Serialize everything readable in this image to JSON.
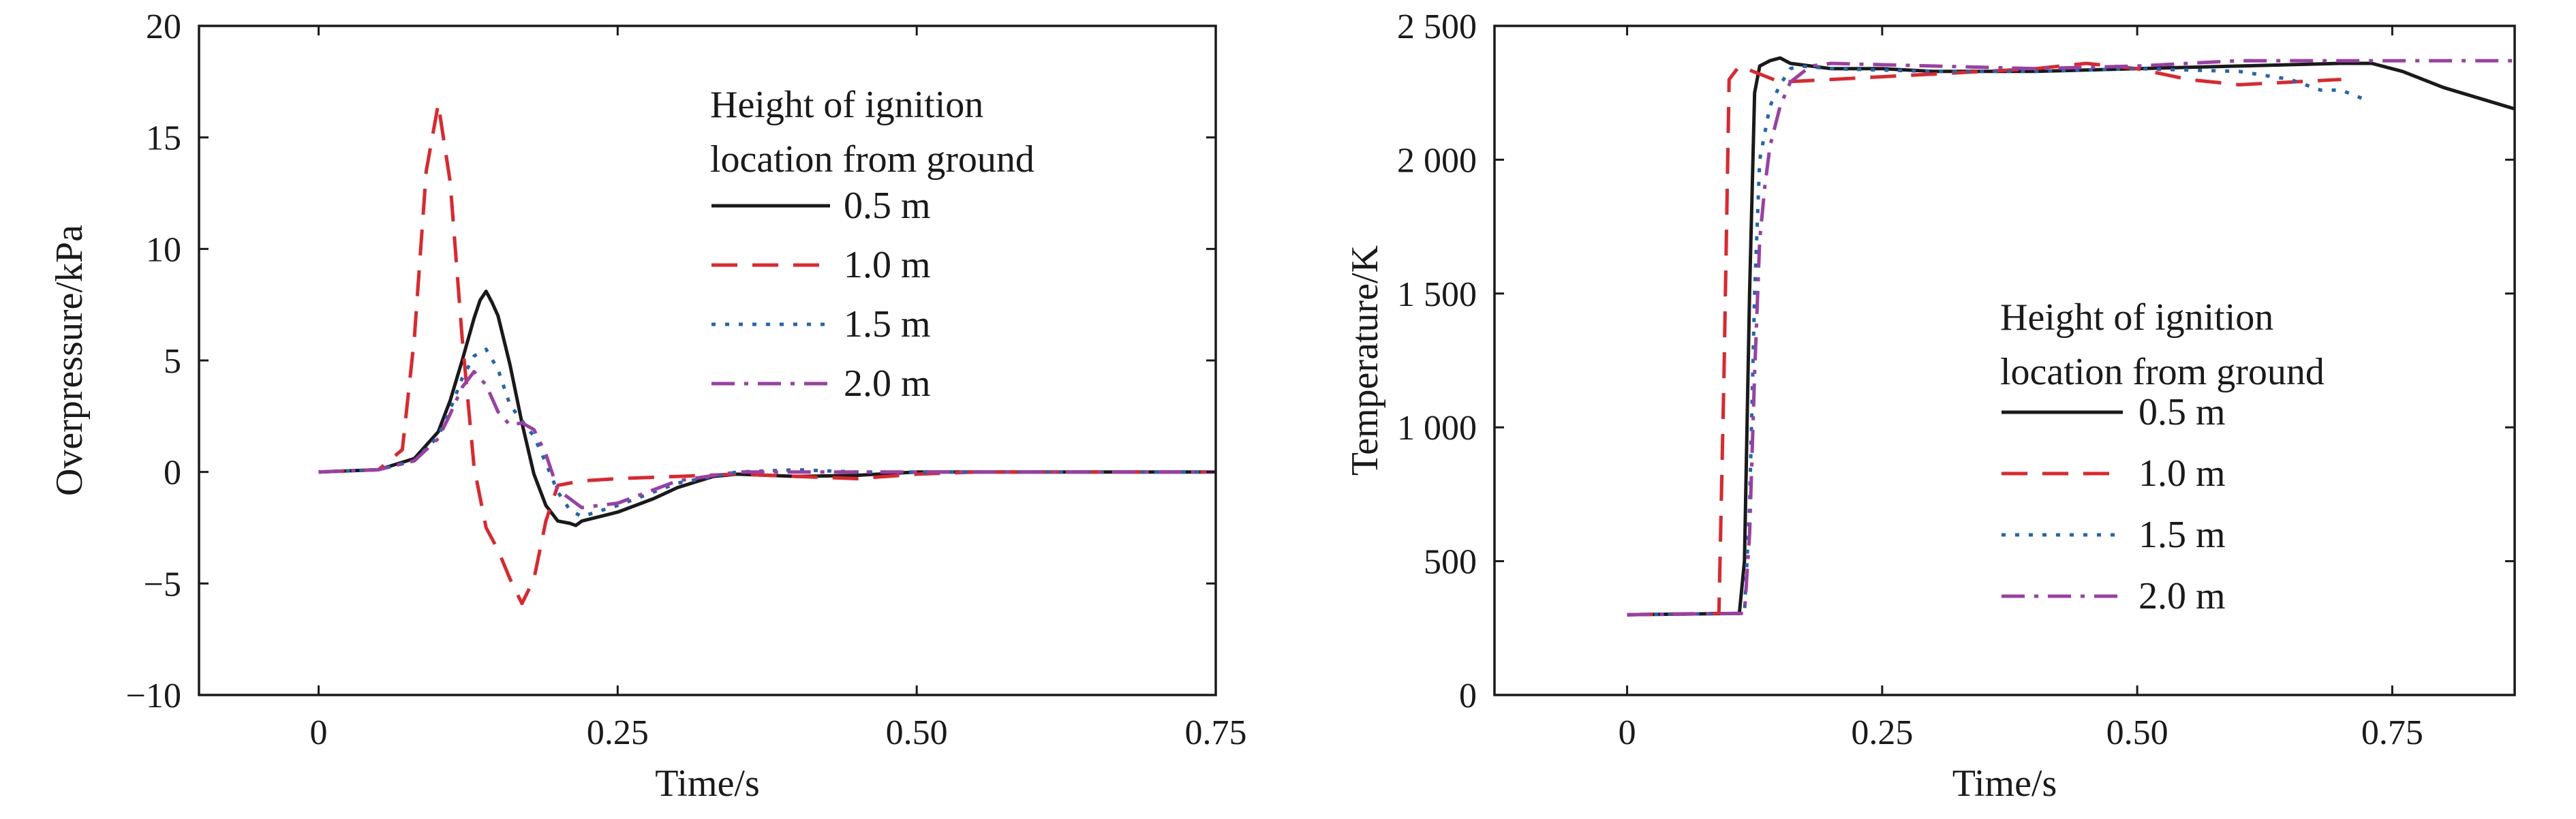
{
  "chart_data": [
    {
      "type": "line",
      "title": "",
      "xlabel": "Time/s",
      "ylabel": "Overpressure/kPa",
      "xlim": [
        -0.1,
        0.75
      ],
      "ylim": [
        -10,
        20
      ],
      "xticks": [
        0,
        0.25,
        0.5,
        0.75
      ],
      "xtick_labels": [
        "0",
        "0.25",
        "0.50",
        "0.75"
      ],
      "yticks": [
        -10,
        -5,
        0,
        5,
        10,
        15,
        20
      ],
      "ytick_labels": [
        "−10",
        "−5",
        "0",
        "5",
        "10",
        "15",
        "20"
      ],
      "grid": false,
      "legend": {
        "title_lines": [
          "Height of ignition",
          "location from ground"
        ],
        "placement": "top-right"
      },
      "series": [
        {
          "name": "0.5 m",
          "color": "#1a1a1a",
          "dash": "solid",
          "x": [
            0,
            0.05,
            0.08,
            0.1,
            0.11,
            0.12,
            0.13,
            0.135,
            0.14,
            0.145,
            0.15,
            0.16,
            0.17,
            0.18,
            0.19,
            0.2,
            0.21,
            0.215,
            0.22,
            0.25,
            0.28,
            0.3,
            0.33,
            0.35,
            0.4,
            0.45,
            0.5,
            0.55,
            0.6,
            0.7,
            0.75
          ],
          "y": [
            0,
            0.1,
            0.6,
            1.8,
            3.2,
            5.0,
            6.9,
            7.7,
            8.1,
            7.6,
            7.0,
            4.8,
            2.2,
            -0.1,
            -1.5,
            -2.2,
            -2.3,
            -2.4,
            -2.2,
            -1.8,
            -1.2,
            -0.7,
            -0.2,
            -0.1,
            -0.2,
            -0.15,
            0,
            0,
            0,
            0,
            0
          ]
        },
        {
          "name": "1.0 m",
          "color": "#e0262a",
          "dash": "long",
          "x": [
            0,
            0.05,
            0.07,
            0.08,
            0.09,
            0.1,
            0.11,
            0.12,
            0.13,
            0.14,
            0.15,
            0.16,
            0.17,
            0.18,
            0.19,
            0.2,
            0.21,
            0.22,
            0.25,
            0.3,
            0.35,
            0.4,
            0.45,
            0.5,
            0.55,
            0.6,
            0.75
          ],
          "y": [
            0,
            0.1,
            1.0,
            6.0,
            13.5,
            16.5,
            13.0,
            6.0,
            0.2,
            -2.5,
            -3.5,
            -4.8,
            -5.9,
            -4.8,
            -2.2,
            -0.6,
            -0.5,
            -0.4,
            -0.3,
            -0.2,
            -0.1,
            -0.2,
            -0.3,
            -0.1,
            0,
            0,
            0
          ]
        },
        {
          "name": "1.5 m",
          "color": "#2166b0",
          "dash": "dotted",
          "x": [
            0,
            0.05,
            0.08,
            0.1,
            0.11,
            0.12,
            0.13,
            0.14,
            0.15,
            0.16,
            0.17,
            0.18,
            0.19,
            0.2,
            0.21,
            0.22,
            0.25,
            0.3,
            0.35,
            0.4,
            0.45,
            0.5,
            0.55,
            0.6,
            0.75
          ],
          "y": [
            0,
            0.1,
            0.5,
            1.6,
            2.8,
            4.2,
            5.2,
            5.5,
            4.6,
            3.0,
            2.3,
            1.6,
            0.4,
            -0.9,
            -1.7,
            -2.0,
            -1.5,
            -0.5,
            0,
            0.1,
            0,
            0,
            0,
            0,
            0
          ]
        },
        {
          "name": "2.0 m",
          "color": "#9b3fa6",
          "dash": "dashdot",
          "x": [
            0,
            0.05,
            0.08,
            0.1,
            0.11,
            0.12,
            0.13,
            0.14,
            0.15,
            0.16,
            0.17,
            0.18,
            0.19,
            0.2,
            0.21,
            0.22,
            0.25,
            0.3,
            0.35,
            0.4,
            0.45,
            0.5,
            0.55,
            0.6,
            0.75
          ],
          "y": [
            0,
            0.1,
            0.5,
            1.5,
            2.6,
            3.8,
            4.5,
            3.9,
            2.7,
            2.1,
            2.2,
            1.9,
            0.8,
            -0.8,
            -1.2,
            -1.6,
            -1.4,
            -0.4,
            0,
            0,
            0,
            0,
            0,
            0,
            0
          ]
        }
      ]
    },
    {
      "type": "line",
      "title": "",
      "xlabel": "Time/s",
      "ylabel": "Temperature/K",
      "xlim": [
        -0.13,
        0.87
      ],
      "ylim": [
        0,
        2500
      ],
      "xticks": [
        0,
        0.25,
        0.5,
        0.75
      ],
      "xtick_labels": [
        "0",
        "0.25",
        "0.50",
        "0.75"
      ],
      "yticks": [
        0,
        500,
        1000,
        1500,
        2000,
        2500
      ],
      "ytick_labels": [
        "0",
        "500",
        "1 000",
        "1 500",
        "2 000",
        "2 500"
      ],
      "grid": false,
      "legend": {
        "title_lines": [
          "Height of ignition",
          "location from ground"
        ],
        "placement": "center-right"
      },
      "series": [
        {
          "name": "0.5 m",
          "color": "#1a1a1a",
          "dash": "solid",
          "x": [
            0,
            0.11,
            0.115,
            0.12,
            0.125,
            0.13,
            0.14,
            0.15,
            0.16,
            0.18,
            0.2,
            0.25,
            0.3,
            0.4,
            0.5,
            0.6,
            0.7,
            0.73,
            0.76,
            0.8,
            0.87
          ],
          "y": [
            300,
            305,
            500,
            1500,
            2250,
            2350,
            2370,
            2380,
            2360,
            2350,
            2340,
            2340,
            2330,
            2330,
            2340,
            2350,
            2360,
            2360,
            2330,
            2270,
            2190
          ]
        },
        {
          "name": "1.0 m",
          "color": "#e0262a",
          "dash": "long",
          "x": [
            0,
            0.09,
            0.095,
            0.1,
            0.11,
            0.15,
            0.2,
            0.25,
            0.3,
            0.35,
            0.4,
            0.45,
            0.5,
            0.55,
            0.6,
            0.65,
            0.7
          ],
          "y": [
            300,
            305,
            1200,
            2300,
            2350,
            2290,
            2300,
            2310,
            2320,
            2330,
            2340,
            2360,
            2340,
            2300,
            2280,
            2290,
            2300
          ]
        },
        {
          "name": "1.5 m",
          "color": "#2166b0",
          "dash": "dotted",
          "x": [
            0,
            0.115,
            0.12,
            0.125,
            0.13,
            0.14,
            0.15,
            0.16,
            0.17,
            0.2,
            0.3,
            0.4,
            0.5,
            0.6,
            0.65,
            0.68,
            0.7,
            0.72
          ],
          "y": [
            300,
            305,
            700,
            1500,
            2000,
            2200,
            2280,
            2340,
            2350,
            2340,
            2330,
            2330,
            2340,
            2330,
            2300,
            2260,
            2260,
            2230
          ]
        },
        {
          "name": "2.0 m",
          "color": "#9b3fa6",
          "dash": "dashdot",
          "x": [
            0,
            0.115,
            0.12,
            0.125,
            0.13,
            0.135,
            0.14,
            0.15,
            0.16,
            0.18,
            0.2,
            0.3,
            0.4,
            0.5,
            0.6,
            0.7,
            0.8,
            0.87
          ],
          "y": [
            300,
            305,
            600,
            1200,
            1700,
            1900,
            2050,
            2200,
            2290,
            2350,
            2360,
            2350,
            2340,
            2350,
            2370,
            2370,
            2370,
            2370
          ]
        }
      ]
    }
  ]
}
